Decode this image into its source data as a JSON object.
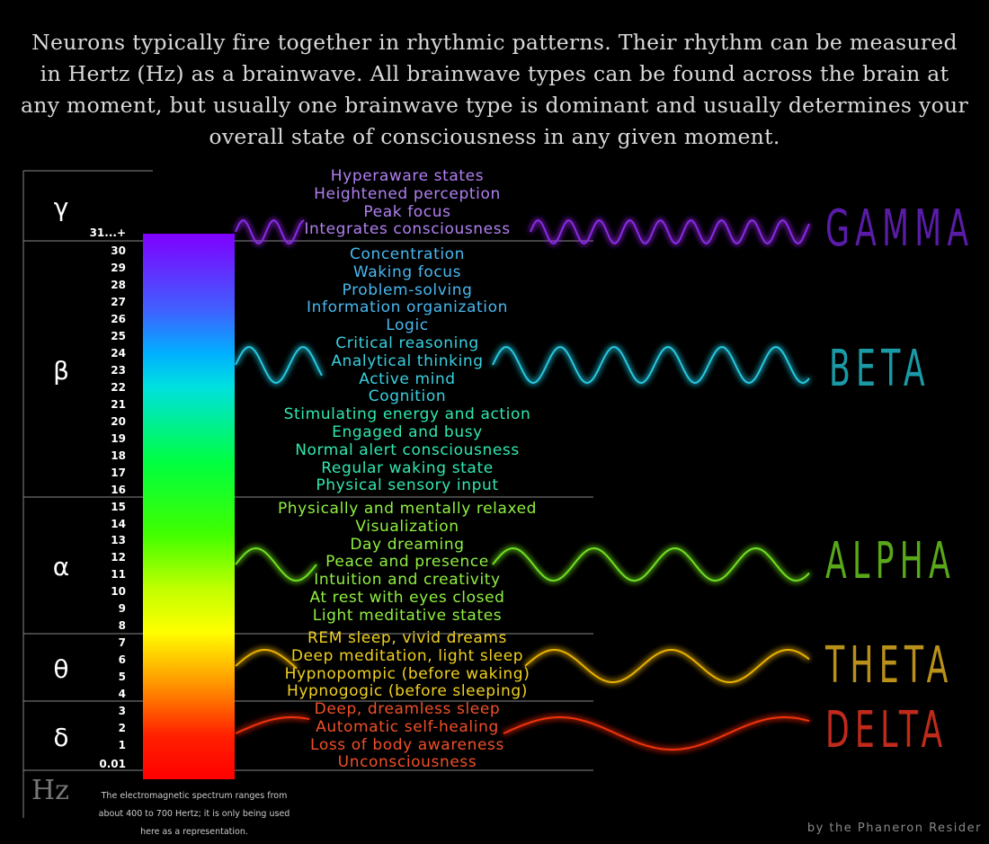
{
  "intro": "Neurons typically fire together in rhythmic patterns. Their rhythm can be measured in Hertz (Hz) as a brainwave.  All brainwave types can be found across the brain at any moment, but usually one brainwave type is dominant and usually determines your overall state of consciousness in any given moment.",
  "bands": [
    {
      "symbol": "γ",
      "name": "GAMMA",
      "color": "#8a2be2",
      "label_color": "#5a1ca8",
      "descriptions": [
        "Hyperaware states",
        "Heightened perception",
        "Peak focus",
        "Integrates consciousness"
      ]
    },
    {
      "symbol": "β",
      "name": "BETA",
      "color": "#28c8e0",
      "label_color": "#1a9aa6",
      "descriptions": [
        "Concentration",
        "Waking focus",
        "Problem-solving",
        "Information organization",
        "Logic",
        "Critical reasoning",
        "Analytical thinking",
        "Active mind",
        "Cognition",
        "Stimulating energy and action",
        "Engaged and busy",
        "Normal alert consciousness",
        "Regular waking state",
        "Physical sensory input"
      ]
    },
    {
      "symbol": "α",
      "name": "ALPHA",
      "color": "#70e020",
      "label_color": "#58a81a",
      "descriptions": [
        "Physically and mentally relaxed",
        "Visualization",
        "Day dreaming",
        "Peace and presence",
        "Intuition and creativity",
        "At rest with eyes closed",
        "Light meditative states"
      ]
    },
    {
      "symbol": "θ",
      "name": "THETA",
      "color": "#e8b000",
      "label_color": "#b8901a",
      "descriptions": [
        "REM sleep, vivid dreams",
        "Deep meditation, light sleep",
        "Hypnopompic (before waking)",
        "Hypnogogic (before sleeping)"
      ]
    },
    {
      "symbol": "δ",
      "name": "DELTA",
      "color": "#f03010",
      "label_color": "#c02a1a",
      "descriptions": [
        "Deep, dreamless sleep",
        "Automatic self-healing",
        "Loss of body awareness",
        "Unconsciousness"
      ]
    }
  ],
  "desc_colors": {
    "gamma": "#b080f0",
    "beta": "#48b8f0",
    "beta_lower": "#30e8b0",
    "alpha": "#90f040",
    "theta": "#f0d020",
    "delta": "#f05028"
  },
  "frequency_ticks": [
    "31...+",
    "30",
    "29",
    "28",
    "27",
    "26",
    "25",
    "24",
    "23",
    "22",
    "21",
    "20",
    "19",
    "18",
    "17",
    "16",
    "15",
    "14",
    "13",
    "12",
    "11",
    "10",
    "9",
    "8",
    "7",
    "6",
    "5",
    "4",
    "3",
    "2",
    "1",
    "0.01"
  ],
  "axis_unit": "Hz",
  "note": "The electromagnetic spectrum ranges from about 400 to 700 Hertz; it is only being used here as a representation.",
  "credit": "by the Phaneron Resider"
}
